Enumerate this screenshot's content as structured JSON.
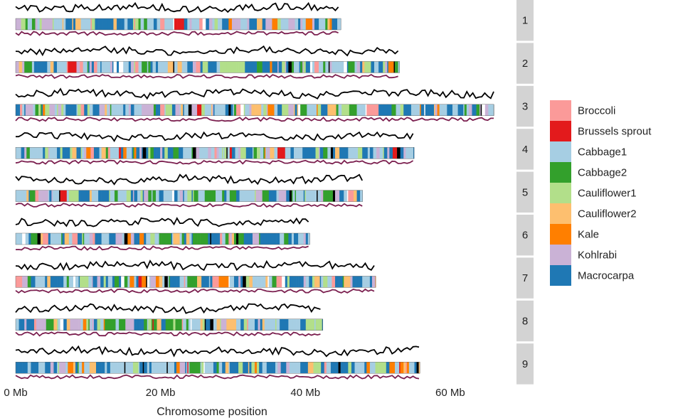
{
  "chart_data": {
    "type": "heatmap",
    "title": "",
    "xlabel": "Chromosome position",
    "ylabel": "",
    "x_unit": "Mb",
    "xlim": [
      0,
      66
    ],
    "x_ticks": [
      {
        "value": 0,
        "label": "0 Mb"
      },
      {
        "value": 20,
        "label": "20 Mb"
      },
      {
        "value": 40,
        "label": "40 Mb"
      },
      {
        "value": 60,
        "label": "60 Mb"
      }
    ],
    "chromosomes": [
      {
        "label": "1",
        "length": 44.9
      },
      {
        "label": "2",
        "length": 53.0
      },
      {
        "label": "3",
        "length": 66.0
      },
      {
        "label": "4",
        "length": 55.0
      },
      {
        "label": "5",
        "length": 47.9
      },
      {
        "label": "6",
        "length": 40.6
      },
      {
        "label": "7",
        "length": 49.7
      },
      {
        "label": "8",
        "length": 42.4
      },
      {
        "label": "9",
        "length": 55.8
      }
    ],
    "bin_size_mb": 0.15,
    "legend": {
      "placement": "right",
      "entries": [
        {
          "name": "Broccoli",
          "color": "#fb9a99"
        },
        {
          "name": "Brussels sprout",
          "color": "#e31a1c"
        },
        {
          "name": "Cabbage1",
          "color": "#a6cee3"
        },
        {
          "name": "Cabbage2",
          "color": "#33a02c"
        },
        {
          "name": "Cauliflower1",
          "color": "#b2df8a"
        },
        {
          "name": "Cauliflower2",
          "color": "#fdbf6f"
        },
        {
          "name": "Kale",
          "color": "#ff7f00"
        },
        {
          "name": "Kohlrabi",
          "color": "#cab2d6"
        },
        {
          "name": "Macrocarpa",
          "color": "#1f78b4"
        }
      ]
    },
    "upper_line_color": "#000000",
    "lower_line_color": "#7b1f4f",
    "strip_color": "#d3d3d3"
  }
}
